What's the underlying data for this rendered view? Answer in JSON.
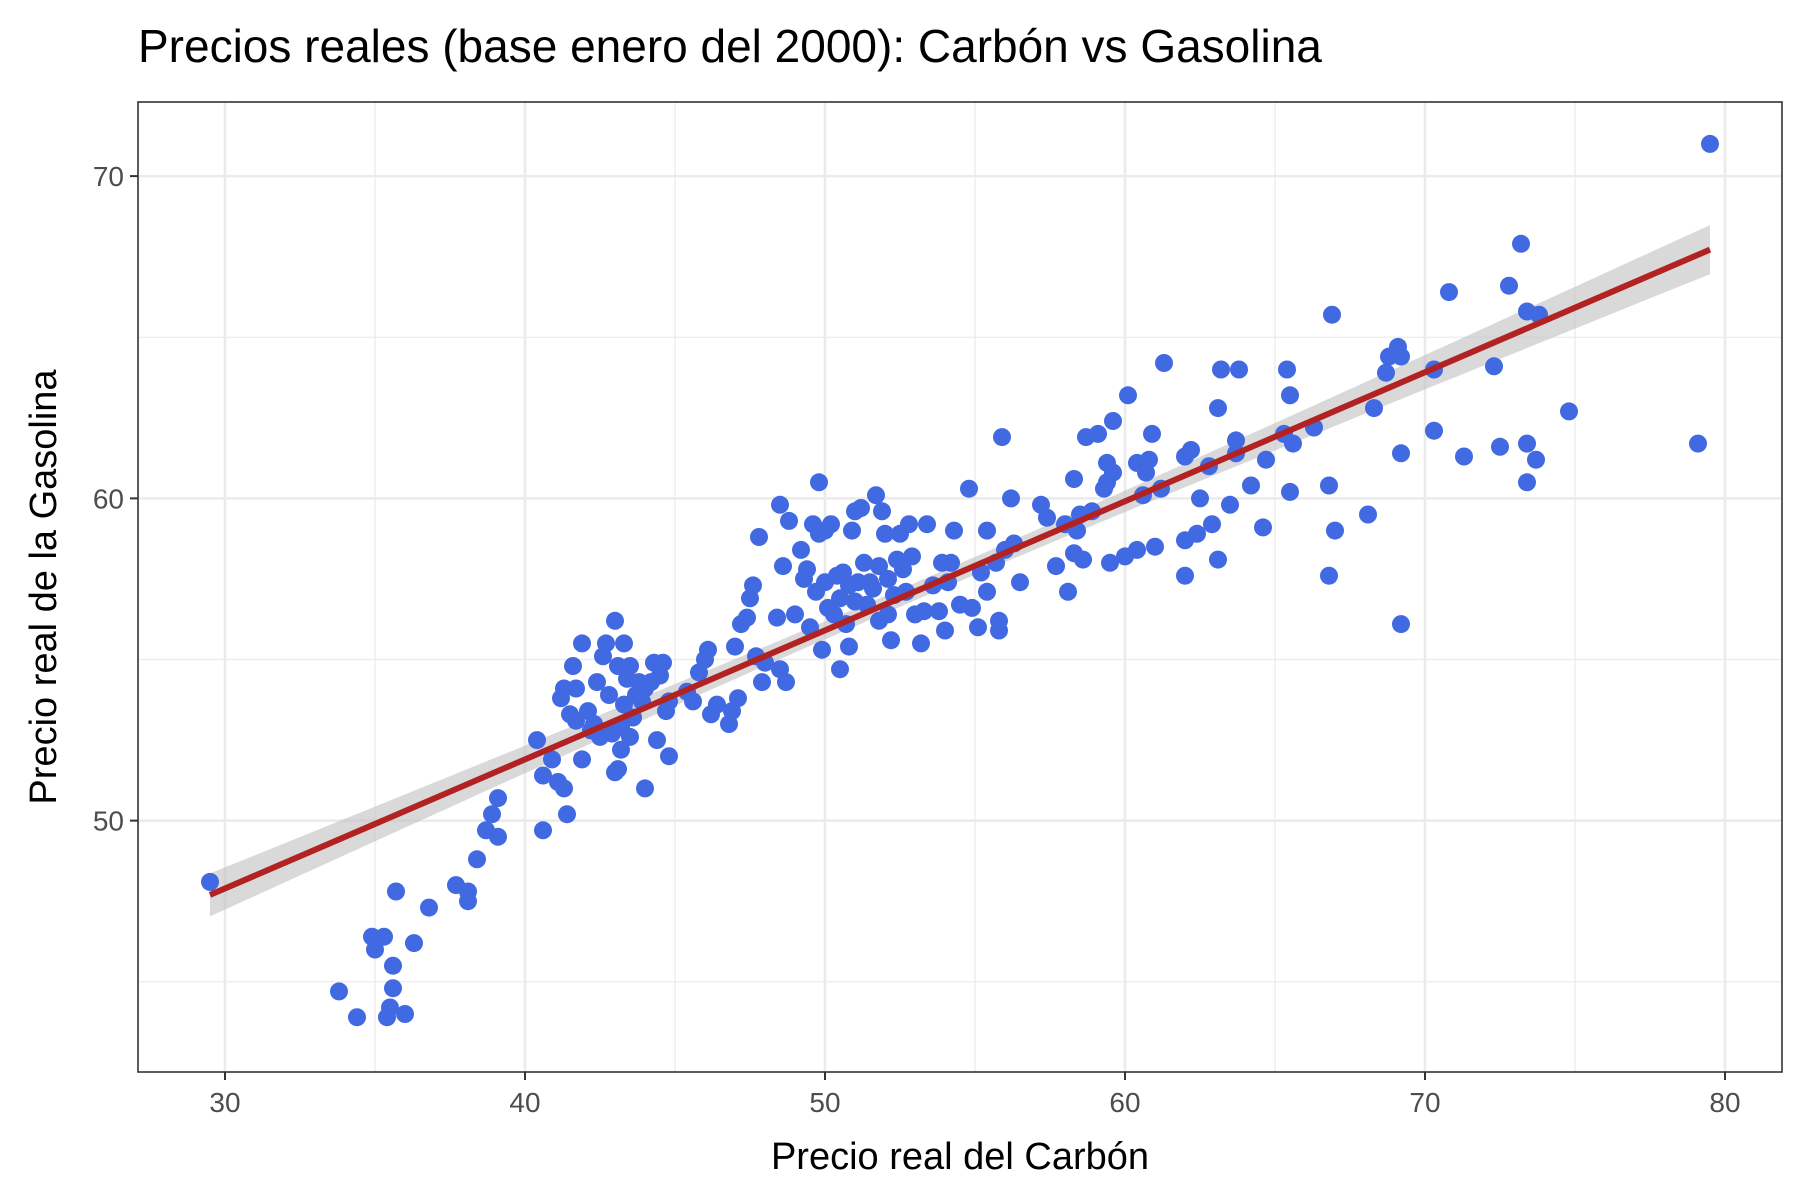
{
  "chart_data": {
    "type": "scatter",
    "title": "Precios reales (base enero del 2000): Carbón vs Gasolina",
    "xlabel": "Precio real del Carbón",
    "ylabel": "Precio real de la Gasolina",
    "xlim": [
      27.1,
      81.9
    ],
    "ylim": [
      42.2,
      72.3
    ],
    "xticks": [
      30,
      40,
      50,
      60,
      70,
      80
    ],
    "yticks": [
      50,
      60,
      70
    ],
    "grid": true,
    "legend": "none",
    "point_color": "#4169e1",
    "line_color": "#b22222",
    "band_color": "#bfbfbf",
    "regression": {
      "intercept": 35.88,
      "slope": 0.4005,
      "x_range": [
        29.5,
        79.5
      ]
    },
    "points": [
      [
        29.5,
        48.1
      ],
      [
        33.8,
        44.7
      ],
      [
        34.4,
        43.9
      ],
      [
        34.9,
        46.4
      ],
      [
        35.3,
        46.4
      ],
      [
        35.0,
        46.0
      ],
      [
        35.6,
        45.5
      ],
      [
        35.5,
        44.2
      ],
      [
        35.6,
        44.8
      ],
      [
        35.4,
        43.9
      ],
      [
        36.0,
        44.0
      ],
      [
        35.7,
        47.8
      ],
      [
        36.3,
        46.2
      ],
      [
        36.8,
        47.3
      ],
      [
        37.7,
        48.0
      ],
      [
        38.1,
        47.8
      ],
      [
        38.1,
        47.5
      ],
      [
        38.4,
        48.8
      ],
      [
        38.7,
        49.7
      ],
      [
        38.9,
        50.2
      ],
      [
        39.1,
        49.5
      ],
      [
        39.1,
        50.7
      ],
      [
        40.4,
        52.5
      ],
      [
        40.6,
        51.4
      ],
      [
        40.6,
        49.7
      ],
      [
        40.9,
        51.9
      ],
      [
        41.1,
        51.2
      ],
      [
        41.3,
        51.0
      ],
      [
        41.4,
        50.2
      ],
      [
        41.2,
        53.8
      ],
      [
        41.3,
        54.1
      ],
      [
        41.5,
        53.3
      ],
      [
        41.6,
        54.8
      ],
      [
        41.7,
        53.1
      ],
      [
        41.7,
        54.1
      ],
      [
        41.9,
        51.9
      ],
      [
        41.9,
        55.5
      ],
      [
        42.1,
        53.4
      ],
      [
        42.2,
        52.8
      ],
      [
        42.3,
        53.0
      ],
      [
        42.4,
        54.3
      ],
      [
        42.5,
        52.6
      ],
      [
        42.6,
        55.1
      ],
      [
        42.7,
        55.5
      ],
      [
        42.8,
        53.9
      ],
      [
        42.9,
        52.7
      ],
      [
        43.0,
        51.5
      ],
      [
        43.1,
        51.6
      ],
      [
        43.0,
        56.2
      ],
      [
        43.2,
        52.2
      ],
      [
        43.2,
        52.9
      ],
      [
        43.3,
        55.5
      ],
      [
        43.3,
        53.6
      ],
      [
        43.1,
        54.8
      ],
      [
        43.4,
        54.4
      ],
      [
        43.5,
        54.8
      ],
      [
        43.5,
        52.6
      ],
      [
        43.6,
        53.2
      ],
      [
        43.7,
        53.9
      ],
      [
        43.8,
        54.3
      ],
      [
        43.9,
        53.7
      ],
      [
        44.0,
        54.1
      ],
      [
        44.0,
        51.0
      ],
      [
        44.2,
        54.3
      ],
      [
        44.3,
        54.9
      ],
      [
        44.4,
        52.5
      ],
      [
        44.5,
        54.5
      ],
      [
        44.6,
        54.9
      ],
      [
        44.7,
        53.4
      ],
      [
        44.8,
        52.0
      ],
      [
        44.8,
        53.7
      ],
      [
        45.4,
        54.0
      ],
      [
        45.6,
        53.7
      ],
      [
        45.8,
        54.6
      ],
      [
        46.0,
        55.0
      ],
      [
        46.1,
        55.3
      ],
      [
        46.2,
        53.3
      ],
      [
        46.4,
        53.6
      ],
      [
        46.8,
        53.0
      ],
      [
        46.9,
        53.4
      ],
      [
        47.0,
        55.4
      ],
      [
        47.1,
        53.8
      ],
      [
        47.2,
        56.1
      ],
      [
        47.4,
        56.3
      ],
      [
        47.5,
        56.9
      ],
      [
        47.6,
        57.3
      ],
      [
        47.7,
        55.1
      ],
      [
        47.8,
        58.8
      ],
      [
        47.9,
        54.3
      ],
      [
        48.0,
        54.9
      ],
      [
        48.4,
        56.3
      ],
      [
        48.5,
        59.8
      ],
      [
        48.5,
        54.7
      ],
      [
        48.6,
        57.9
      ],
      [
        48.7,
        54.3
      ],
      [
        48.8,
        59.3
      ],
      [
        49.0,
        56.4
      ],
      [
        49.2,
        58.4
      ],
      [
        49.3,
        57.5
      ],
      [
        49.4,
        57.8
      ],
      [
        49.5,
        56.0
      ],
      [
        49.6,
        59.2
      ],
      [
        49.7,
        57.1
      ],
      [
        49.8,
        58.9
      ],
      [
        49.8,
        60.5
      ],
      [
        49.9,
        55.3
      ],
      [
        50.0,
        57.4
      ],
      [
        50.0,
        59.0
      ],
      [
        50.1,
        56.6
      ],
      [
        50.2,
        59.2
      ],
      [
        50.3,
        56.4
      ],
      [
        50.4,
        57.6
      ],
      [
        50.5,
        54.7
      ],
      [
        50.5,
        56.9
      ],
      [
        50.6,
        57.7
      ],
      [
        50.7,
        56.1
      ],
      [
        50.8,
        57.3
      ],
      [
        50.8,
        55.4
      ],
      [
        50.9,
        59.0
      ],
      [
        51.0,
        56.8
      ],
      [
        51.0,
        59.6
      ],
      [
        51.1,
        57.4
      ],
      [
        51.2,
        59.7
      ],
      [
        51.3,
        58.0
      ],
      [
        51.4,
        56.7
      ],
      [
        51.5,
        57.4
      ],
      [
        51.6,
        57.2
      ],
      [
        51.7,
        60.1
      ],
      [
        51.8,
        56.2
      ],
      [
        51.8,
        57.9
      ],
      [
        51.9,
        59.6
      ],
      [
        52.0,
        58.9
      ],
      [
        52.1,
        57.5
      ],
      [
        52.1,
        56.4
      ],
      [
        52.2,
        55.6
      ],
      [
        52.3,
        57.0
      ],
      [
        52.4,
        58.1
      ],
      [
        52.5,
        58.9
      ],
      [
        52.6,
        57.8
      ],
      [
        52.7,
        57.1
      ],
      [
        52.8,
        59.2
      ],
      [
        52.9,
        58.2
      ],
      [
        53.0,
        56.4
      ],
      [
        53.2,
        55.5
      ],
      [
        53.3,
        56.5
      ],
      [
        53.4,
        59.2
      ],
      [
        53.6,
        57.3
      ],
      [
        53.8,
        56.5
      ],
      [
        53.9,
        58.0
      ],
      [
        54.0,
        55.9
      ],
      [
        54.1,
        57.4
      ],
      [
        54.2,
        58.0
      ],
      [
        54.3,
        59.0
      ],
      [
        54.5,
        56.7
      ],
      [
        54.8,
        60.3
      ],
      [
        54.9,
        56.6
      ],
      [
        55.1,
        56.0
      ],
      [
        55.2,
        57.7
      ],
      [
        55.4,
        57.1
      ],
      [
        55.4,
        59.0
      ],
      [
        55.7,
        58.0
      ],
      [
        55.8,
        56.2
      ],
      [
        55.8,
        55.9
      ],
      [
        55.9,
        61.9
      ],
      [
        56.0,
        58.4
      ],
      [
        56.2,
        60.0
      ],
      [
        56.3,
        58.6
      ],
      [
        56.5,
        57.4
      ],
      [
        57.2,
        59.8
      ],
      [
        57.4,
        59.4
      ],
      [
        57.7,
        57.9
      ],
      [
        58.0,
        59.2
      ],
      [
        58.1,
        57.1
      ],
      [
        58.3,
        58.3
      ],
      [
        58.3,
        60.6
      ],
      [
        58.4,
        59.0
      ],
      [
        58.5,
        59.5
      ],
      [
        58.6,
        58.1
      ],
      [
        58.7,
        61.9
      ],
      [
        58.9,
        59.6
      ],
      [
        59.1,
        62.0
      ],
      [
        59.3,
        60.3
      ],
      [
        59.4,
        61.1
      ],
      [
        59.4,
        60.5
      ],
      [
        59.5,
        58.0
      ],
      [
        59.6,
        62.4
      ],
      [
        59.6,
        60.8
      ],
      [
        60.0,
        58.2
      ],
      [
        60.1,
        63.2
      ],
      [
        60.4,
        58.4
      ],
      [
        60.4,
        61.1
      ],
      [
        60.6,
        60.1
      ],
      [
        60.7,
        60.8
      ],
      [
        60.8,
        61.2
      ],
      [
        60.9,
        62.0
      ],
      [
        61.0,
        58.5
      ],
      [
        61.2,
        60.3
      ],
      [
        61.3,
        64.2
      ],
      [
        62.0,
        58.7
      ],
      [
        62.0,
        57.6
      ],
      [
        62.0,
        61.3
      ],
      [
        62.2,
        61.5
      ],
      [
        62.4,
        58.9
      ],
      [
        62.5,
        60.0
      ],
      [
        62.8,
        61.0
      ],
      [
        62.9,
        59.2
      ],
      [
        63.1,
        58.1
      ],
      [
        63.1,
        62.8
      ],
      [
        63.2,
        64.0
      ],
      [
        63.5,
        59.8
      ],
      [
        63.7,
        61.4
      ],
      [
        63.7,
        61.8
      ],
      [
        63.8,
        64.0
      ],
      [
        64.2,
        60.4
      ],
      [
        64.6,
        59.1
      ],
      [
        64.7,
        61.2
      ],
      [
        65.3,
        62.0
      ],
      [
        65.4,
        64.0
      ],
      [
        65.5,
        63.2
      ],
      [
        65.5,
        60.2
      ],
      [
        65.6,
        61.7
      ],
      [
        66.3,
        62.2
      ],
      [
        66.8,
        57.6
      ],
      [
        66.8,
        60.4
      ],
      [
        66.9,
        65.7
      ],
      [
        67.0,
        59.0
      ],
      [
        68.1,
        59.5
      ],
      [
        68.3,
        62.8
      ],
      [
        68.7,
        63.9
      ],
      [
        68.8,
        64.4
      ],
      [
        69.1,
        64.7
      ],
      [
        69.2,
        64.4
      ],
      [
        69.2,
        61.4
      ],
      [
        69.2,
        56.1
      ],
      [
        70.3,
        64.0
      ],
      [
        70.3,
        62.1
      ],
      [
        70.8,
        66.4
      ],
      [
        71.3,
        61.3
      ],
      [
        72.3,
        64.1
      ],
      [
        72.5,
        61.6
      ],
      [
        72.8,
        66.6
      ],
      [
        73.2,
        67.9
      ],
      [
        73.4,
        65.8
      ],
      [
        73.4,
        61.7
      ],
      [
        73.4,
        60.5
      ],
      [
        73.7,
        61.2
      ],
      [
        73.8,
        65.7
      ],
      [
        74.8,
        62.7
      ],
      [
        79.1,
        61.7
      ],
      [
        79.5,
        71.0
      ]
    ]
  }
}
